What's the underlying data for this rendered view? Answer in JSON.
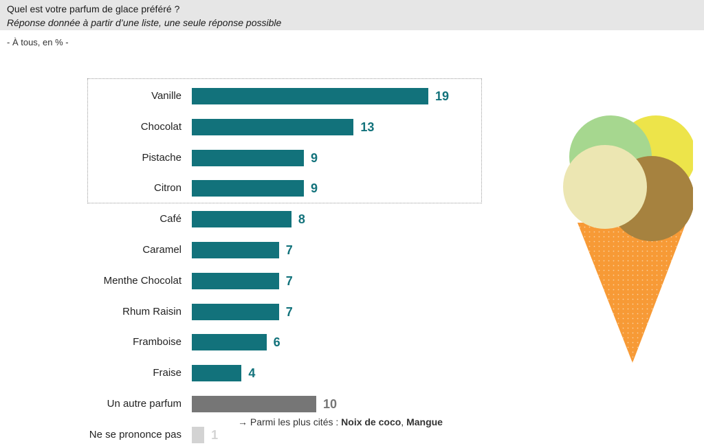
{
  "header": {
    "title": "Quel est votre parfum de glace préféré ?",
    "subtitle": "Réponse donnée à partir d’une liste, une seule réponse possible",
    "base": "- À tous, en % -"
  },
  "note": {
    "arrow": "→",
    "prefix": "Parmi les plus cités :",
    "item1": "Noix de coco",
    "separator": ",",
    "item2": "Mangue"
  },
  "chart_data": {
    "type": "bar",
    "orientation": "horizontal",
    "categories": [
      "Vanille",
      "Chocolat",
      "Pistache",
      "Citron",
      "Café",
      "Caramel",
      "Menthe Chocolat",
      "Rhum Raisin",
      "Framboise",
      "Fraise",
      "Un autre parfum",
      "Ne se prononce pas"
    ],
    "values": [
      19,
      13,
      9,
      9,
      8,
      7,
      7,
      7,
      6,
      4,
      10,
      1
    ],
    "title": "Quel est votre parfum de glace préféré ?",
    "xlabel": "",
    "ylabel": "",
    "xlim": [
      0,
      19
    ],
    "grid": false,
    "highlighted_top": 4,
    "colors": {
      "main": "#12727b",
      "other": "#767676",
      "no_answer": "#d3d3d3"
    }
  },
  "illustration": {
    "name": "ice-cream-cone",
    "colors": {
      "pistachio": "#a6d78f",
      "lemon": "#ede44a",
      "vanilla": "#ece6b2",
      "chocolate": "#a6823f",
      "cone": "#f79a36"
    }
  }
}
